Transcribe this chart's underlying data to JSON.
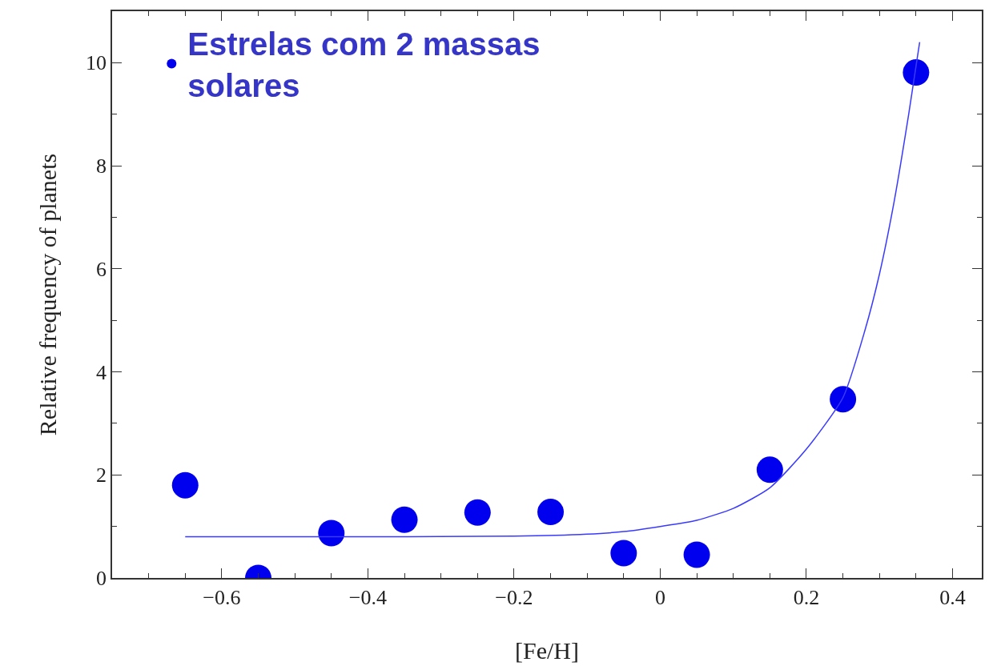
{
  "chart_data": {
    "type": "scatter",
    "xlabel": "[Fe/H]",
    "ylabel": "Relative frequency of planets",
    "x": [
      -0.65,
      -0.55,
      -0.45,
      -0.35,
      -0.25,
      -0.15,
      -0.05,
      0.05,
      0.15,
      0.25,
      0.35
    ],
    "series": [
      {
        "name": "Estrelas com 2 massas solares",
        "color": "#0000ee",
        "marker": "circle",
        "values": [
          1.8,
          0.0,
          0.87,
          1.13,
          1.27,
          1.28,
          0.48,
          0.45,
          2.1,
          3.47,
          9.81
        ]
      },
      {
        "type": "line",
        "color": "#3a3aff",
        "x": [
          -0.65,
          -0.4,
          -0.2,
          -0.1,
          -0.05,
          0,
          0.05,
          0.1,
          0.15,
          0.2,
          0.25,
          0.28,
          0.3,
          0.32,
          0.34,
          0.355
        ],
        "values": [
          0.8,
          0.8,
          0.81,
          0.85,
          0.9,
          1.0,
          1.12,
          1.35,
          1.75,
          2.5,
          3.5,
          4.8,
          5.9,
          7.3,
          9.0,
          10.4
        ]
      }
    ],
    "xlim": [
      -0.75,
      0.44
    ],
    "xticks": [
      {
        "value": -0.6,
        "label": "−0.6"
      },
      {
        "value": -0.4,
        "label": "−0.4"
      },
      {
        "value": -0.2,
        "label": "−0.2"
      },
      0,
      0.2,
      0.4
    ],
    "ylim": [
      0,
      11
    ],
    "yticks": [
      0,
      2,
      4,
      6,
      8,
      10
    ],
    "grid": false,
    "legend": "top left"
  }
}
